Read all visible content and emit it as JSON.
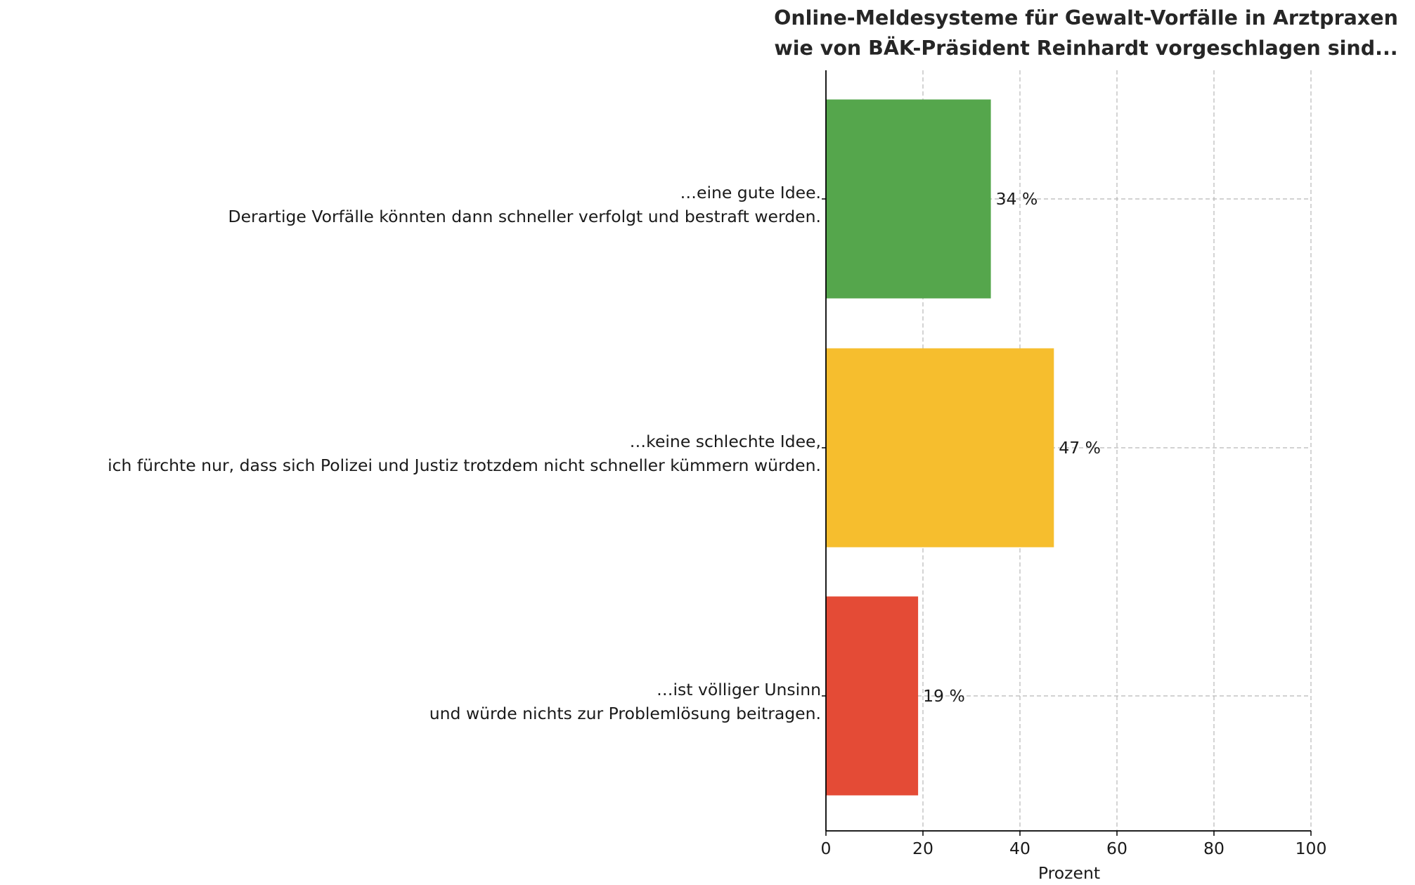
{
  "chart_data": {
    "type": "bar",
    "orientation": "horizontal",
    "title": [
      "Online-Meldesysteme für Gewalt-Vorfälle in Arztpraxen",
      "wie von BÄK-Präsident Reinhardt vorgeschlagen sind..."
    ],
    "xlabel": "Prozent",
    "ylabel": "",
    "xlim": [
      0,
      100
    ],
    "xticks": [
      0,
      20,
      40,
      60,
      80,
      100
    ],
    "grid": true,
    "categories": [
      [
        "…eine gute Idee.",
        "Derartige Vorfälle könnten dann schneller verfolgt und bestraft werden."
      ],
      [
        "…keine schlechte Idee,",
        "ich fürchte nur, dass sich Polizei und Justiz trotzdem nicht schneller kümmern würden."
      ],
      [
        "…ist völliger Unsinn",
        "und würde nichts zur Problemlösung beitragen."
      ]
    ],
    "values": [
      34,
      47,
      19
    ],
    "value_labels": [
      "34 %",
      "47 %",
      "19 %"
    ],
    "colors": [
      "#55a64c",
      "#f6be2e",
      "#e44b36"
    ]
  }
}
